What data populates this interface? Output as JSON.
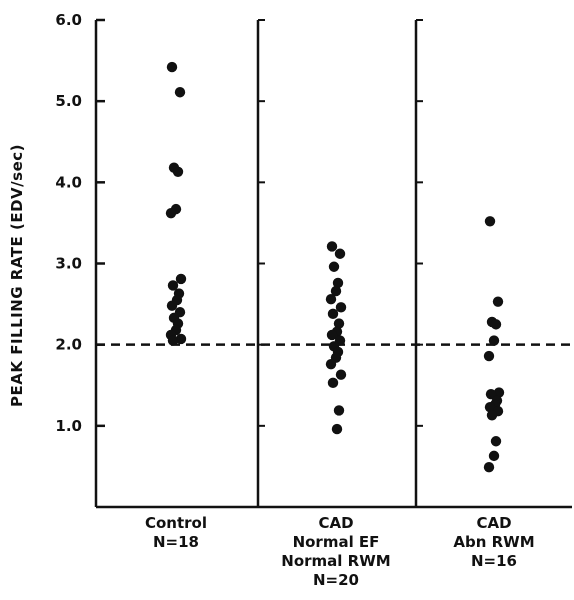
{
  "chart_data": {
    "type": "scatter",
    "ylabel": "PEAK FILLING RATE (EDV/sec)",
    "ylim": [
      0,
      6.0
    ],
    "yticks": [
      1.0,
      2.0,
      3.0,
      4.0,
      5.0,
      6.0
    ],
    "yticklabels": [
      "1.0",
      "2.0",
      "3.0",
      "4.0",
      "5.0",
      "6.0"
    ],
    "reference_line": {
      "y": 2.0,
      "style": "dashed"
    },
    "groups": [
      {
        "label_lines": [
          "Control",
          "N=18"
        ],
        "values": [
          5.42,
          5.11,
          4.18,
          4.13,
          3.67,
          3.62,
          2.81,
          2.73,
          2.63,
          2.55,
          2.48,
          2.4,
          2.33,
          2.26,
          2.18,
          2.12,
          2.07,
          2.05
        ]
      },
      {
        "label_lines": [
          "CAD",
          "Normal EF",
          "Normal RWM",
          "N=20"
        ],
        "values": [
          3.21,
          3.12,
          2.96,
          2.76,
          2.66,
          2.56,
          2.46,
          2.38,
          2.26,
          2.16,
          2.12,
          2.05,
          1.98,
          1.91,
          1.84,
          1.76,
          1.63,
          1.53,
          1.19,
          0.96
        ]
      },
      {
        "label_lines": [
          "CAD",
          "Abn RWM",
          "N=16"
        ],
        "values": [
          3.52,
          2.53,
          2.28,
          2.25,
          2.05,
          1.86,
          1.41,
          1.39,
          1.31,
          1.26,
          1.23,
          1.18,
          1.13,
          0.81,
          0.63,
          0.49
        ]
      }
    ],
    "grid": false,
    "legend": "none",
    "colors": {
      "points": "#111111",
      "axes": "#111111",
      "background": "#ffffff"
    }
  }
}
